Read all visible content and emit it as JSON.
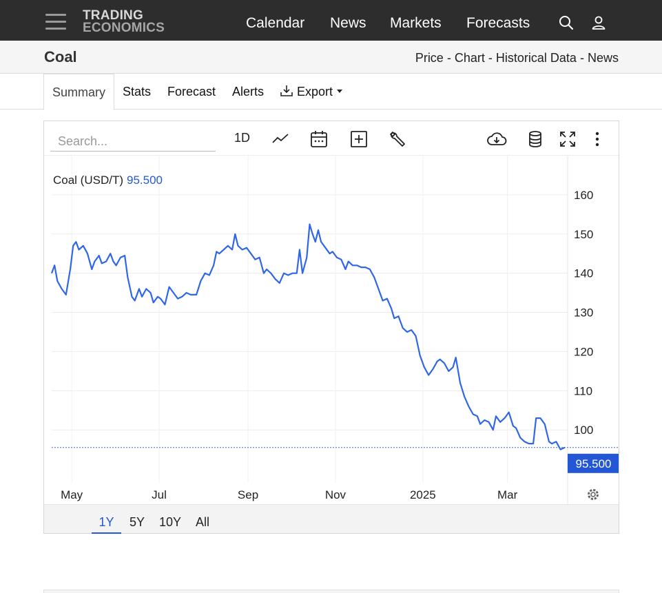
{
  "header": {
    "logo_line1": "TRADING",
    "logo_line2": "ECONOMICS",
    "nav": [
      "Calendar",
      "News",
      "Markets",
      "Forecasts"
    ]
  },
  "page": {
    "title": "Coal",
    "links": [
      "Price",
      "Chart",
      "Historical Data",
      "News"
    ],
    "link_sep": "-"
  },
  "tabs": [
    "Summary",
    "Stats",
    "Forecast",
    "Alerts",
    "Export"
  ],
  "toolbar": {
    "search_placeholder": "Search...",
    "interval": "1D"
  },
  "ranges": [
    "1Y",
    "5Y",
    "10Y",
    "All"
  ],
  "colors": {
    "series": "#2f66e8",
    "accent": "#2457d6",
    "topbar": "#2d2d2d"
  },
  "chart_data": {
    "type": "line",
    "legend_label": "Coal (USD/T)",
    "last_value_label": "95.500",
    "last_value": 95.5,
    "ylim": [
      86.5,
      170
    ],
    "y_ticks": [
      100,
      110,
      120,
      130,
      140,
      150,
      160
    ],
    "x_ticks": [
      {
        "date": "2024-05-01",
        "label": "May"
      },
      {
        "date": "2024-07-01",
        "label": "Jul"
      },
      {
        "date": "2024-09-01",
        "label": "Sep"
      },
      {
        "date": "2024-11-01",
        "label": "Nov"
      },
      {
        "date": "2025-01-01",
        "label": "2025"
      },
      {
        "date": "2025-03-01",
        "label": "Mar"
      }
    ],
    "grid": true,
    "series": [
      {
        "points": [
          [
            "2024-04-17",
            140.0
          ],
          [
            "2024-04-19",
            142.0
          ],
          [
            "2024-04-21",
            138.0
          ],
          [
            "2024-04-24",
            136.0
          ],
          [
            "2024-04-27",
            134.5
          ],
          [
            "2024-04-30",
            141.0
          ],
          [
            "2024-05-02",
            147.0
          ],
          [
            "2024-05-04",
            148.0
          ],
          [
            "2024-05-06",
            146.0
          ],
          [
            "2024-05-09",
            147.0
          ],
          [
            "2024-05-12",
            145.0
          ],
          [
            "2024-05-15",
            141.0
          ],
          [
            "2024-05-17",
            143.0
          ],
          [
            "2024-05-20",
            144.5
          ],
          [
            "2024-05-22",
            142.5
          ],
          [
            "2024-05-25",
            143.0
          ],
          [
            "2024-05-28",
            145.0
          ],
          [
            "2024-05-30",
            143.0
          ],
          [
            "2024-06-01",
            142.0
          ],
          [
            "2024-06-04",
            144.0
          ],
          [
            "2024-06-07",
            144.5
          ],
          [
            "2024-06-09",
            139.0
          ],
          [
            "2024-06-12",
            134.0
          ],
          [
            "2024-06-14",
            133.0
          ],
          [
            "2024-06-17",
            136.0
          ],
          [
            "2024-06-19",
            134.0
          ],
          [
            "2024-06-22",
            136.0
          ],
          [
            "2024-06-25",
            135.0
          ],
          [
            "2024-06-27",
            132.5
          ],
          [
            "2024-06-30",
            134.0
          ],
          [
            "2024-07-02",
            133.5
          ],
          [
            "2024-07-05",
            132.0
          ],
          [
            "2024-07-08",
            136.5
          ],
          [
            "2024-07-11",
            135.0
          ],
          [
            "2024-07-14",
            133.5
          ],
          [
            "2024-07-17",
            134.0
          ],
          [
            "2024-07-20",
            135.0
          ],
          [
            "2024-07-23",
            134.5
          ],
          [
            "2024-07-27",
            134.5
          ],
          [
            "2024-07-30",
            138.0
          ],
          [
            "2024-08-02",
            140.0
          ],
          [
            "2024-08-05",
            139.5
          ],
          [
            "2024-08-08",
            142.0
          ],
          [
            "2024-08-10",
            145.5
          ],
          [
            "2024-08-12",
            145.0
          ],
          [
            "2024-08-15",
            146.0
          ],
          [
            "2024-08-18",
            147.0
          ],
          [
            "2024-08-21",
            146.0
          ],
          [
            "2024-08-23",
            150.0
          ],
          [
            "2024-08-25",
            147.0
          ],
          [
            "2024-08-28",
            146.0
          ],
          [
            "2024-08-31",
            146.5
          ],
          [
            "2024-09-03",
            145.0
          ],
          [
            "2024-09-06",
            143.5
          ],
          [
            "2024-09-09",
            144.0
          ],
          [
            "2024-09-12",
            140.0
          ],
          [
            "2024-09-14",
            141.0
          ],
          [
            "2024-09-17",
            140.0
          ],
          [
            "2024-09-20",
            138.5
          ],
          [
            "2024-09-23",
            137.5
          ],
          [
            "2024-09-26",
            140.0
          ],
          [
            "2024-09-29",
            139.5
          ],
          [
            "2024-10-02",
            140.0
          ],
          [
            "2024-10-05",
            140.0
          ],
          [
            "2024-10-07",
            146.0
          ],
          [
            "2024-10-09",
            140.0
          ],
          [
            "2024-10-12",
            144.0
          ],
          [
            "2024-10-14",
            152.5
          ],
          [
            "2024-10-16",
            150.0
          ],
          [
            "2024-10-18",
            148.0
          ],
          [
            "2024-10-20",
            151.0
          ],
          [
            "2024-10-22",
            148.0
          ],
          [
            "2024-10-25",
            146.5
          ],
          [
            "2024-10-28",
            145.0
          ],
          [
            "2024-10-30",
            145.5
          ],
          [
            "2024-11-02",
            144.0
          ],
          [
            "2024-11-05",
            143.5
          ],
          [
            "2024-11-08",
            141.0
          ],
          [
            "2024-11-10",
            143.0
          ],
          [
            "2024-11-13",
            142.0
          ],
          [
            "2024-11-16",
            142.0
          ],
          [
            "2024-11-19",
            141.5
          ],
          [
            "2024-11-22",
            141.5
          ],
          [
            "2024-11-25",
            141.0
          ],
          [
            "2024-11-28",
            139.0
          ],
          [
            "2024-12-01",
            136.0
          ],
          [
            "2024-12-04",
            133.0
          ],
          [
            "2024-12-07",
            133.5
          ],
          [
            "2024-12-10",
            131.0
          ],
          [
            "2024-12-12",
            128.5
          ],
          [
            "2024-12-15",
            129.0
          ],
          [
            "2024-12-18",
            126.0
          ],
          [
            "2024-12-21",
            125.0
          ],
          [
            "2024-12-24",
            125.5
          ],
          [
            "2024-12-27",
            124.0
          ],
          [
            "2024-12-30",
            119.0
          ],
          [
            "2025-01-02",
            116.0
          ],
          [
            "2025-01-05",
            114.0
          ],
          [
            "2025-01-08",
            115.5
          ],
          [
            "2025-01-11",
            117.5
          ],
          [
            "2025-01-13",
            118.0
          ],
          [
            "2025-01-16",
            117.0
          ],
          [
            "2025-01-19",
            115.0
          ],
          [
            "2025-01-22",
            116.0
          ],
          [
            "2025-01-24",
            118.5
          ],
          [
            "2025-01-27",
            112.0
          ],
          [
            "2025-01-30",
            108.5
          ],
          [
            "2025-02-02",
            106.0
          ],
          [
            "2025-02-05",
            104.0
          ],
          [
            "2025-02-08",
            103.5
          ],
          [
            "2025-02-10",
            101.5
          ],
          [
            "2025-02-13",
            102.5
          ],
          [
            "2025-02-16",
            102.0
          ],
          [
            "2025-02-19",
            100.0
          ],
          [
            "2025-02-21",
            103.5
          ],
          [
            "2025-02-24",
            102.0
          ],
          [
            "2025-02-27",
            103.0
          ],
          [
            "2025-03-02",
            104.5
          ],
          [
            "2025-03-05",
            101.0
          ],
          [
            "2025-03-07",
            100.5
          ],
          [
            "2025-03-10",
            98.0
          ],
          [
            "2025-03-13",
            97.0
          ],
          [
            "2025-03-16",
            96.5
          ],
          [
            "2025-03-19",
            96.5
          ],
          [
            "2025-03-21",
            103.0
          ],
          [
            "2025-03-24",
            103.0
          ],
          [
            "2025-03-27",
            101.5
          ],
          [
            "2025-03-30",
            97.0
          ],
          [
            "2025-04-01",
            96.5
          ],
          [
            "2025-04-04",
            97.0
          ],
          [
            "2025-04-07",
            95.0
          ],
          [
            "2025-04-10",
            95.5
          ]
        ]
      }
    ]
  }
}
